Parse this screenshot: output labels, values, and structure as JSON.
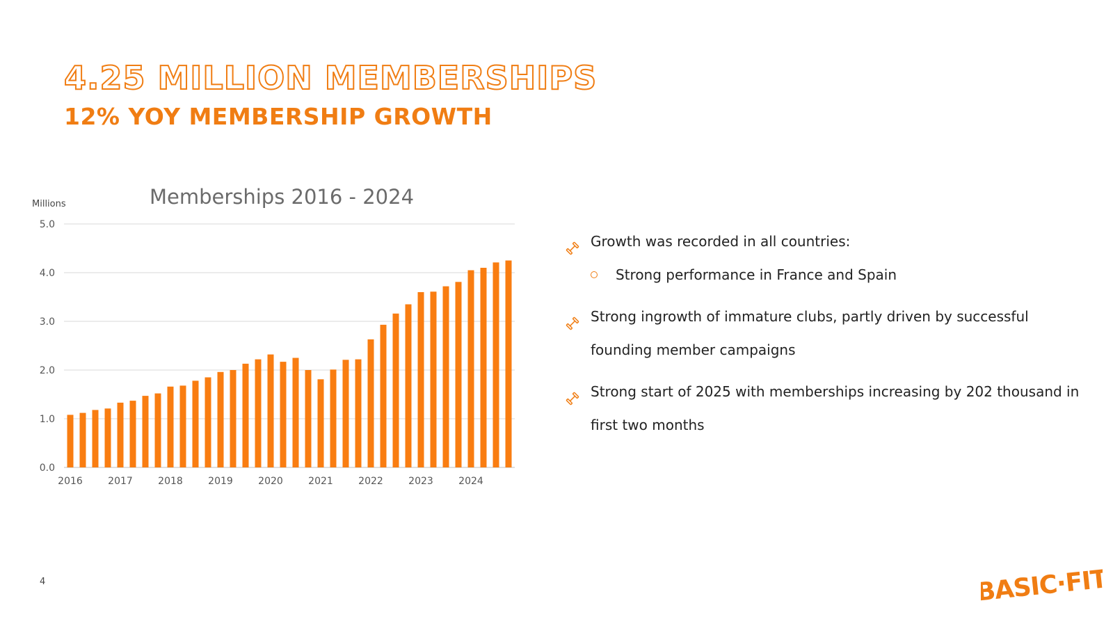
{
  "slide": {
    "title": "4.25 MILLION MEMBERSHIPS",
    "subtitle": "12% YOY MEMBERSHIP GROWTH",
    "page_number": "4",
    "brand_color": "#f07d13"
  },
  "logo": {
    "text": "BASIC-FIT"
  },
  "bullets": [
    {
      "text": "Growth was recorded in all countries:",
      "icon": "dumbbell-icon",
      "level": 1
    },
    {
      "text": "Strong performance in France and Spain",
      "icon": "ring-bullet-icon",
      "level": 2
    },
    {
      "text": "Strong ingrowth of immature clubs, partly driven by successful founding member campaigns",
      "icon": "dumbbell-icon",
      "level": 1
    },
    {
      "text": "Strong start of 2025 with memberships increasing by 202 thousand in first two months",
      "icon": "dumbbell-icon",
      "level": 1
    }
  ],
  "chart_data": {
    "type": "bar",
    "title": "Memberships 2016 - 2024",
    "ylabel": "Millions",
    "xlabel": "",
    "ylim": [
      0,
      5
    ],
    "yticks": [
      "0.0",
      "1.0",
      "2.0",
      "3.0",
      "4.0",
      "5.0"
    ],
    "x_year_labels": [
      "2016",
      "2017",
      "2018",
      "2019",
      "2020",
      "2021",
      "2022",
      "2023",
      "2024"
    ],
    "bars_per_year": 4,
    "grid": true,
    "legend": "none",
    "bar_color": "#f97d11",
    "values": [
      1.08,
      1.12,
      1.18,
      1.21,
      1.33,
      1.37,
      1.47,
      1.52,
      1.66,
      1.68,
      1.78,
      1.85,
      1.96,
      2.0,
      2.13,
      2.22,
      2.32,
      2.17,
      2.25,
      2.0,
      1.81,
      2.01,
      2.21,
      2.22,
      2.63,
      2.93,
      3.16,
      3.35,
      3.6,
      3.61,
      3.72,
      3.81,
      4.05,
      4.1,
      4.21,
      4.25
    ]
  }
}
